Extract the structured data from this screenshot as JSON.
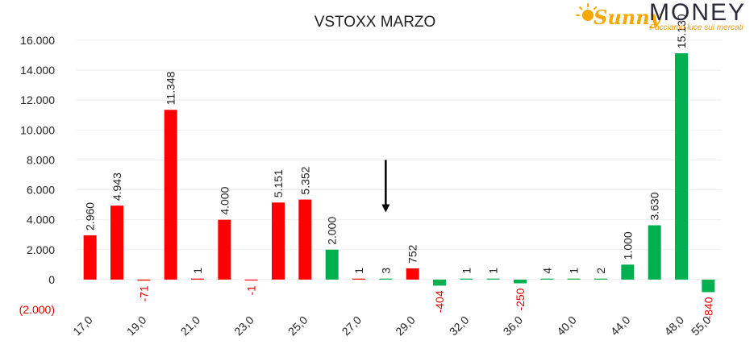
{
  "logo": {
    "brand_script": "Sunny",
    "brand_word": "MONEY",
    "tagline": "Facciamo luce sui mercati",
    "colors": {
      "sun": "#f5a800",
      "word": "#2b2b3a",
      "tagline": "#e89a10"
    }
  },
  "chart_data": {
    "type": "bar",
    "title": "VSTOXX MARZO",
    "xlabel": "",
    "ylabel": "",
    "ylim": [
      -2000,
      16000
    ],
    "yticks": [
      16000,
      14000,
      12000,
      10000,
      8000,
      6000,
      4000,
      2000,
      0,
      -2000
    ],
    "ytick_labels": [
      "16.000",
      "14.000",
      "12.000",
      "10.000",
      "8.000",
      "6.000",
      "4.000",
      "2.000",
      "0",
      "(2.000)"
    ],
    "grid": true,
    "legend": "none",
    "colors": {
      "red": "#ff0000",
      "green": "#00b050",
      "negative_text": "#e00000"
    },
    "bars": [
      {
        "x": 17.0,
        "value": 2960,
        "label": "2.960",
        "color": "red"
      },
      {
        "x": 18.0,
        "value": 4943,
        "label": "4.943",
        "color": "red"
      },
      {
        "x": 19.0,
        "value": -71,
        "label": "-71",
        "color": "red"
      },
      {
        "x": 20.0,
        "value": 11348,
        "label": "11.348",
        "color": "red"
      },
      {
        "x": 21.0,
        "value": 1,
        "label": "1",
        "color": "red"
      },
      {
        "x": 22.0,
        "value": 4000,
        "label": "4.000",
        "color": "red"
      },
      {
        "x": 23.0,
        "value": -1,
        "label": "-1",
        "color": "red"
      },
      {
        "x": 24.0,
        "value": 5151,
        "label": "5.151",
        "color": "red"
      },
      {
        "x": 25.0,
        "value": 5352,
        "label": "5.352",
        "color": "red"
      },
      {
        "x": 27.0,
        "value": 2000,
        "label": "2.000",
        "color": "green"
      },
      {
        "x": 29.0,
        "value": 1,
        "label": "1",
        "color": "red"
      },
      {
        "x": 29.5,
        "value": 3,
        "label": "3",
        "color": "green"
      },
      {
        "x": 30.0,
        "value": 752,
        "label": "752",
        "color": "red"
      },
      {
        "x": 32.0,
        "value": -404,
        "label": "-404",
        "color": "green"
      },
      {
        "x": 34.0,
        "value": 1,
        "label": "1",
        "color": "green"
      },
      {
        "x": 35.0,
        "value": 1,
        "label": "1",
        "color": "green"
      },
      {
        "x": 36.0,
        "value": -250,
        "label": "-250",
        "color": "green"
      },
      {
        "x": 40.0,
        "value": 4,
        "label": "4",
        "color": "green"
      },
      {
        "x": 44.0,
        "value": 1,
        "label": "1",
        "color": "green"
      },
      {
        "x": 46.0,
        "value": 2,
        "label": "2",
        "color": "green"
      },
      {
        "x": 48.0,
        "value": 1000,
        "label": "1.000",
        "color": "green"
      },
      {
        "x": 50.0,
        "value": 3630,
        "label": "3.630",
        "color": "green"
      },
      {
        "x": 55.0,
        "value": 15130,
        "label": "15.130",
        "color": "green"
      },
      {
        "x": 60.0,
        "value": -840,
        "label": "-840",
        "color": "green"
      }
    ],
    "xtick_labels": [
      "17,0",
      "19,0",
      "21,0",
      "23,0",
      "25,0",
      "27,0",
      "29,0",
      "32,0",
      "36,0",
      "40,0",
      "44,0",
      "48,0",
      "55,0"
    ],
    "annotations": [
      {
        "type": "arrow",
        "direction": "down",
        "at_bar_index": 11,
        "from_value": 8000,
        "to_value": 4600
      }
    ]
  }
}
